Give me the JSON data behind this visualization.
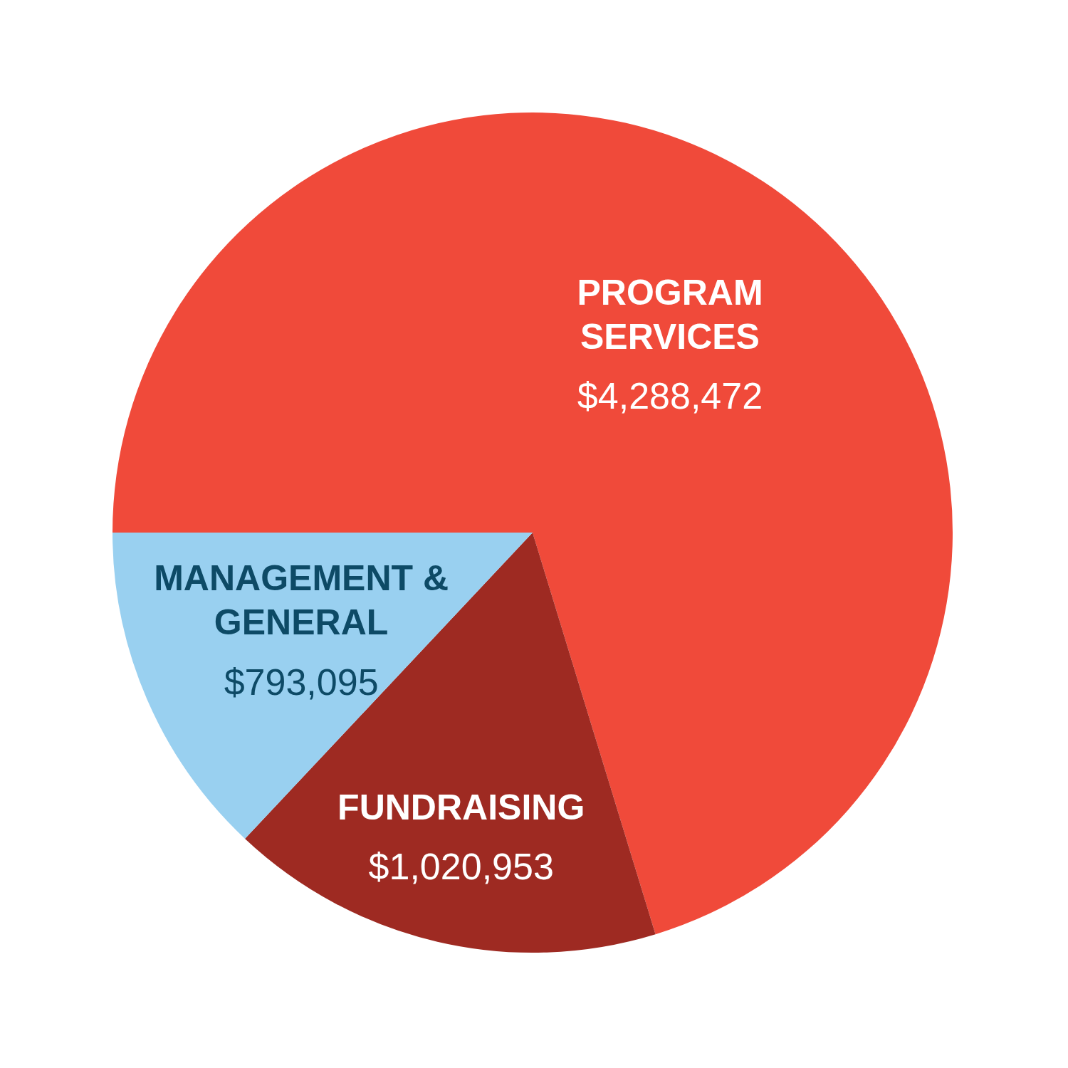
{
  "chart_data": {
    "type": "pie",
    "categories": [
      "PROGRAM SERVICES",
      "FUNDRAISING",
      "MANAGEMENT & GENERAL"
    ],
    "values": [
      4288472,
      1020953,
      793095
    ],
    "colors": [
      "#f04a3a",
      "#9e2a22",
      "#99d0f0"
    ],
    "value_labels": [
      "$4,288,472",
      "$1,020,953",
      "$793,095"
    ],
    "legend": false
  }
}
